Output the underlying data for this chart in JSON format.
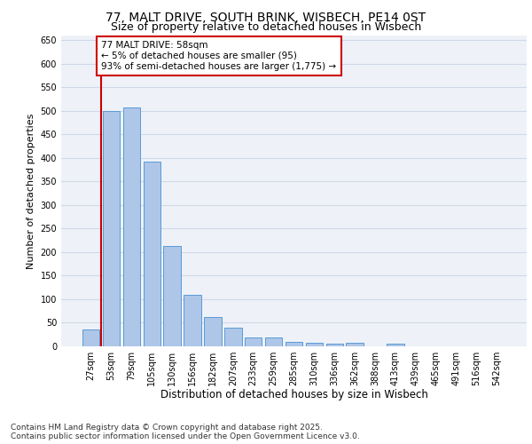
{
  "title1": "77, MALT DRIVE, SOUTH BRINK, WISBECH, PE14 0ST",
  "title2": "Size of property relative to detached houses in Wisbech",
  "xlabel": "Distribution of detached houses by size in Wisbech",
  "ylabel": "Number of detached properties",
  "categories": [
    "27sqm",
    "53sqm",
    "79sqm",
    "105sqm",
    "130sqm",
    "156sqm",
    "182sqm",
    "207sqm",
    "233sqm",
    "259sqm",
    "285sqm",
    "310sqm",
    "336sqm",
    "362sqm",
    "388sqm",
    "413sqm",
    "439sqm",
    "465sqm",
    "491sqm",
    "516sqm",
    "542sqm"
  ],
  "values": [
    35,
    500,
    507,
    393,
    213,
    110,
    63,
    40,
    18,
    18,
    10,
    8,
    5,
    8,
    0,
    5,
    0,
    0,
    0,
    0,
    0
  ],
  "bar_color": "#aec6e8",
  "bar_edge_color": "#5b9bd5",
  "annotation_line_color": "#cc0000",
  "annotation_box_text": "77 MALT DRIVE: 58sqm\n← 5% of detached houses are smaller (95)\n93% of semi-detached houses are larger (1,775) →",
  "annotation_box_color": "#cc0000",
  "ylim": [
    0,
    660
  ],
  "yticks": [
    0,
    50,
    100,
    150,
    200,
    250,
    300,
    350,
    400,
    450,
    500,
    550,
    600,
    650
  ],
  "grid_color": "#d0d8e8",
  "background_color": "#eef2f8",
  "footer_line1": "Contains HM Land Registry data © Crown copyright and database right 2025.",
  "footer_line2": "Contains public sector information licensed under the Open Government Licence v3.0.",
  "title_fontsize": 10,
  "subtitle_fontsize": 9,
  "axis_label_fontsize": 8.5,
  "tick_fontsize": 7,
  "ylabel_fontsize": 8,
  "footer_fontsize": 6.5,
  "annotation_fontsize": 7.5
}
